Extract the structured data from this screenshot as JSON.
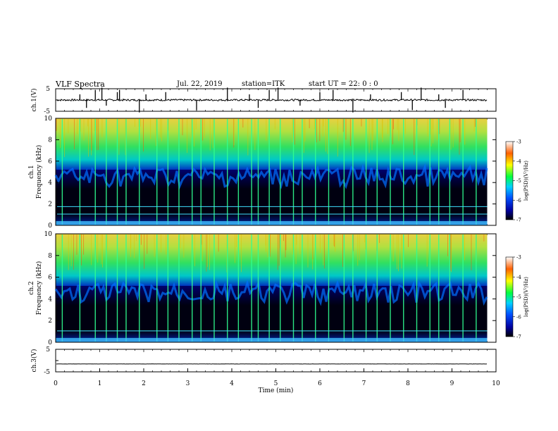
{
  "header": {
    "title": "VLF Spectra",
    "date": "Jul. 22, 2019",
    "station": "station=ITK",
    "start": "start UT =  22: 0 : 0"
  },
  "chart_data": [
    {
      "type": "line",
      "name": "ch1-waveform",
      "ylabel": "ch.1(V)",
      "xlim": [
        0,
        10
      ],
      "ylim": [
        -5,
        5
      ],
      "yticks": [
        "5",
        "-5"
      ],
      "baseline": 0,
      "noise_amplitude": 0.4,
      "spikes_x": [
        0.55,
        0.7,
        0.9,
        1.05,
        1.15,
        1.4,
        1.45,
        1.9,
        2.05,
        2.5,
        3.2,
        3.9,
        4.4,
        4.6,
        4.85,
        5.05,
        5.55,
        6.0,
        6.3,
        6.75,
        7.15,
        7.85,
        8.1,
        8.3,
        8.7,
        8.85,
        9.25
      ]
    },
    {
      "type": "heatmap",
      "name": "ch1-spectrogram",
      "ylabel": "ch.1 Frequency (kHz)",
      "xlim": [
        0,
        9.8
      ],
      "ylim": [
        0,
        10
      ],
      "yticks": [
        "0",
        "2",
        "4",
        "6",
        "8",
        "10"
      ],
      "colorbar": {
        "label": "log(PSD)(V²/Hz)",
        "ticks": [
          "-3",
          "-4",
          "-5",
          "-6",
          "-7"
        ],
        "range": [
          -7,
          -3
        ]
      },
      "hiss_lower_edge_khz": 5.2,
      "lines_khz": [
        1.05,
        1.75
      ],
      "sferic_x": [
        0.15,
        0.55,
        0.9,
        1.15,
        1.4,
        1.6,
        1.9,
        2.3,
        2.55,
        2.8,
        3.1,
        3.3,
        3.6,
        3.9,
        4.15,
        4.45,
        4.6,
        4.85,
        5.1,
        5.4,
        5.6,
        5.9,
        6.2,
        6.55,
        6.75,
        7.05,
        7.3,
        7.6,
        7.9,
        8.2,
        8.5,
        8.7,
        8.95,
        9.25,
        9.55
      ]
    },
    {
      "type": "heatmap",
      "name": "ch2-spectrogram",
      "ylabel": "ch.2 Frequency (kHz)",
      "xlim": [
        0,
        9.8
      ],
      "ylim": [
        0,
        10
      ],
      "yticks": [
        "0",
        "2",
        "4",
        "6",
        "8",
        "10"
      ],
      "colorbar": {
        "label": "log(PSD)(V²/Hz)",
        "ticks": [
          "-3",
          "-4",
          "-5",
          "-6",
          "-7"
        ],
        "range": [
          -7,
          -3
        ]
      },
      "hiss_lower_edge_khz": 5.2,
      "lines_khz": [
        1.05
      ],
      "sferic_x": [
        0.15,
        0.55,
        0.9,
        1.15,
        1.4,
        1.6,
        1.9,
        2.3,
        2.55,
        2.8,
        3.1,
        3.3,
        3.6,
        3.9,
        4.15,
        4.45,
        4.6,
        4.85,
        5.1,
        5.4,
        5.6,
        5.9,
        6.2,
        6.55,
        6.75,
        7.05,
        7.3,
        7.6,
        7.9,
        8.2,
        8.5,
        8.7,
        8.95,
        9.25,
        9.55
      ]
    },
    {
      "type": "line",
      "name": "ch3-waveform",
      "ylabel": "ch.3(V)",
      "xlim": [
        0,
        10
      ],
      "ylim": [
        -5,
        5
      ],
      "yticks": [
        "5",
        "-5"
      ],
      "baseline": -1.5,
      "noise_amplitude": 0.05
    }
  ],
  "xaxis": {
    "label": "Time (min)",
    "ticks": [
      "0",
      "1",
      "2",
      "3",
      "4",
      "5",
      "6",
      "7",
      "8",
      "9",
      "10"
    ]
  }
}
